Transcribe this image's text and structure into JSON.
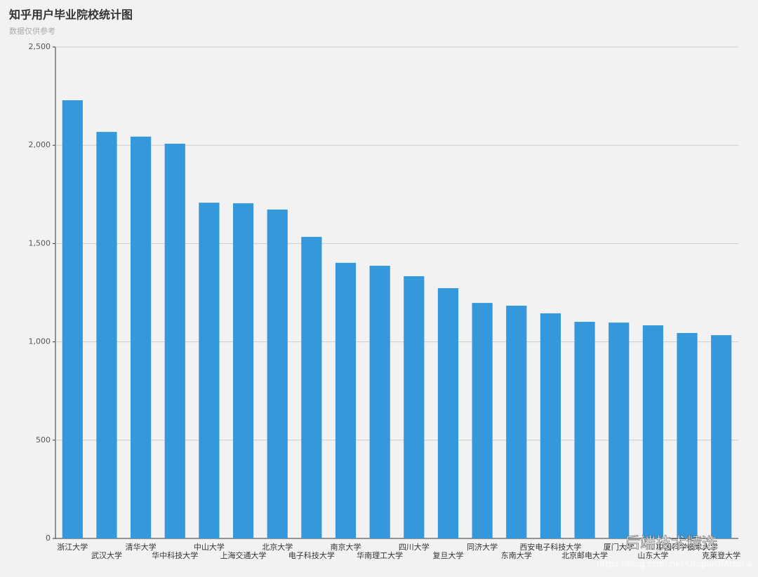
{
  "chart_data": {
    "type": "bar",
    "title": "知乎用户毕业院校统计图",
    "subtitle": "数据仅供参考",
    "categories": [
      "浙江大学",
      "武汉大学",
      "清华大学",
      "华中科技大学",
      "中山大学",
      "上海交通大学",
      "北京大学",
      "电子科技大学",
      "南京大学",
      "华南理工大学",
      "四川大学",
      "复旦大学",
      "同济大学",
      "东南大学",
      "西安电子科技大学",
      "北京邮电大学",
      "厦门大学",
      "山东大学",
      "中国科学技术大学",
      "克莱登大学"
    ],
    "values": [
      2229,
      2068,
      2044,
      2008,
      1708,
      1705,
      1673,
      1534,
      1402,
      1387,
      1334,
      1273,
      1198,
      1184,
      1145,
      1102,
      1098,
      1084,
      1045,
      1034
    ],
    "color": "#3598db",
    "ylim": [
      0,
      2500
    ],
    "yticks": [
      0,
      500,
      {
        "value": 1000,
        "label": "1,000"
      },
      {
        "value": 1500,
        "label": "1,500"
      },
      {
        "value": 2000,
        "label": "2,000"
      },
      {
        "value": 2500,
        "label": "2,500"
      }
    ],
    "grid": true
  },
  "watermark": {
    "brand": "后端技术精选",
    "url": "https://blog.csdn.net/UtopiaOfArtoria"
  }
}
